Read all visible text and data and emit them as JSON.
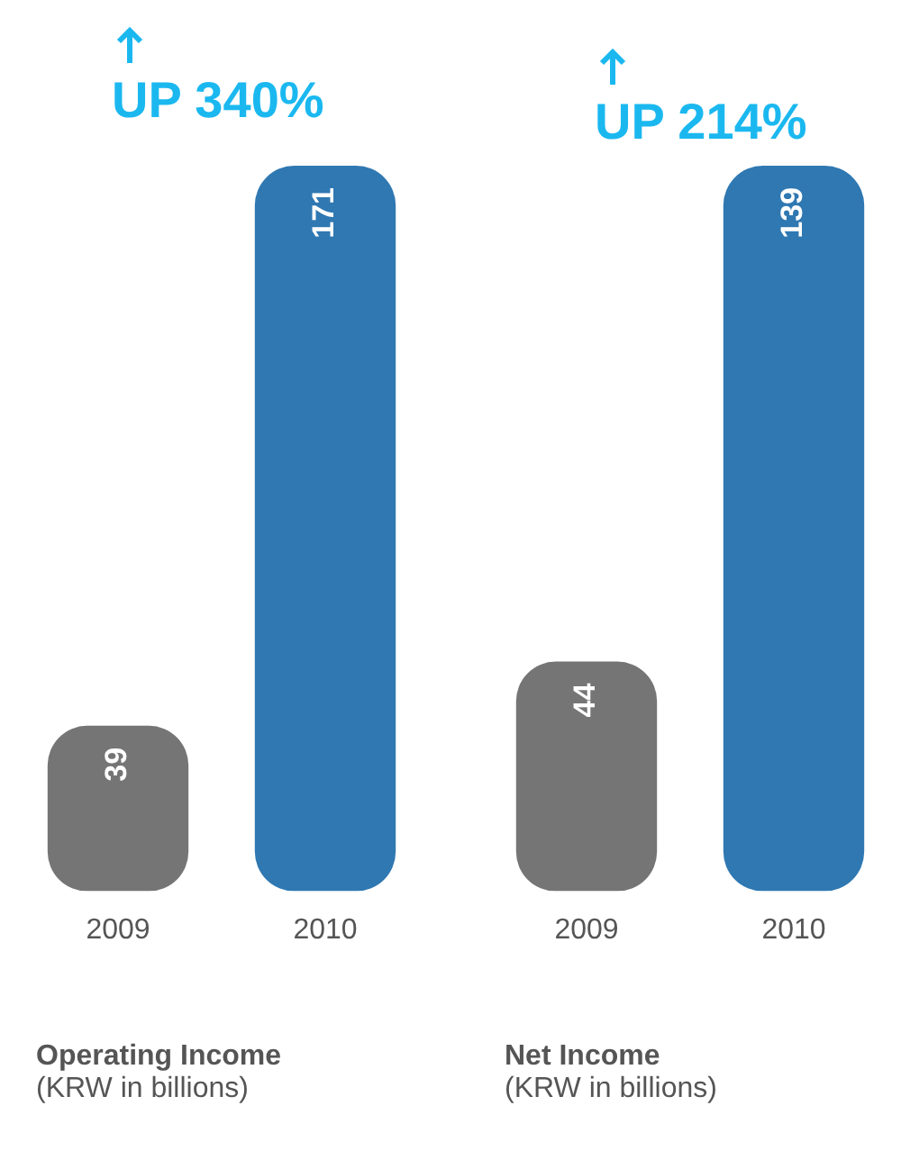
{
  "chart_data": [
    {
      "type": "bar",
      "title": "Operating Income",
      "subtitle": "(KRW in billions)",
      "annotations": [
        "UP 340%"
      ],
      "categories": [
        "2009",
        "2010"
      ],
      "values": [
        39,
        171
      ],
      "colors": [
        "#757575",
        "#2f78b2"
      ],
      "data_labels": true,
      "tick_labels": "x",
      "grid": false,
      "legend": false
    },
    {
      "type": "bar",
      "title": "Net Income",
      "subtitle": "(KRW in billions)",
      "annotations": [
        "UP 214%"
      ],
      "categories": [
        "2009",
        "2010"
      ],
      "values": [
        44,
        139
      ],
      "colors": [
        "#757575",
        "#2f78b2"
      ],
      "data_labels": true,
      "tick_labels": "x",
      "grid": false,
      "legend": false
    }
  ]
}
